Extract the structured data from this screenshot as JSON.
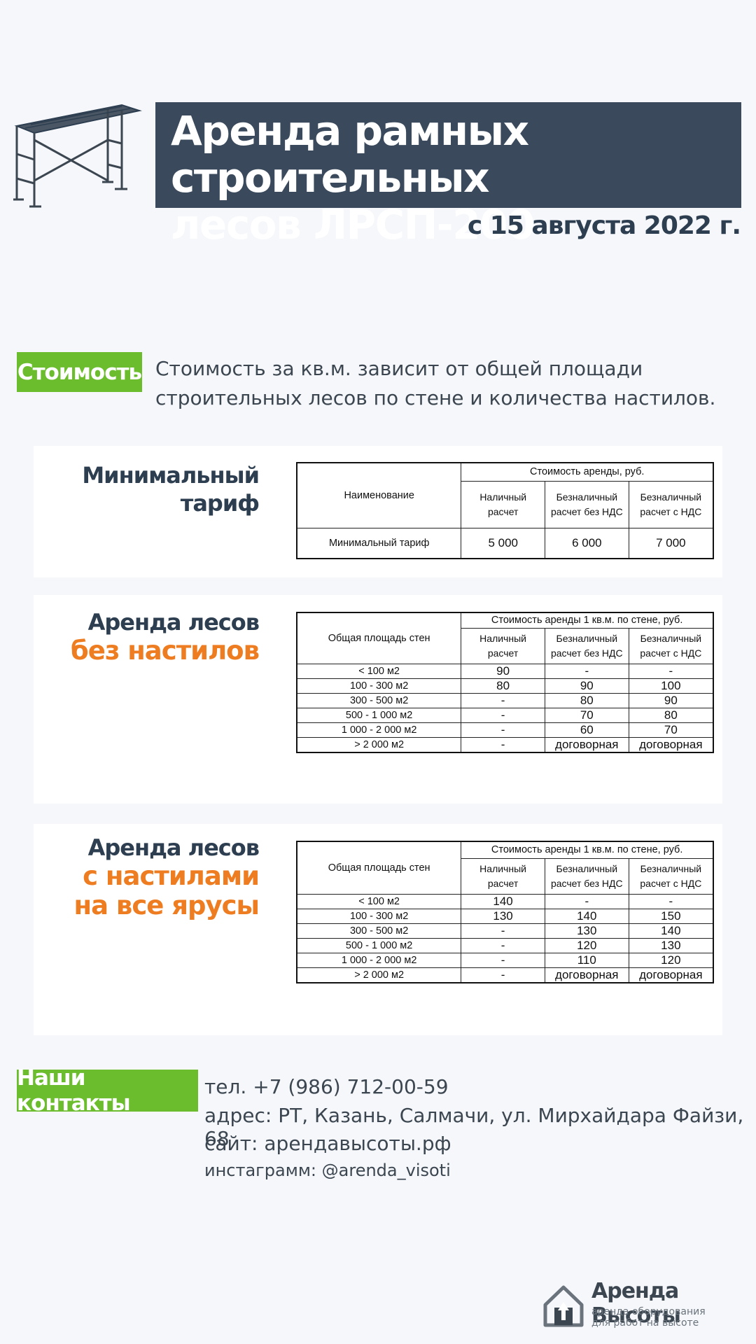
{
  "header": {
    "title_line1": "Аренда рамных строительных",
    "title_line2": "лесов ЛРСП-200",
    "date": "с 15 августа 2022 г."
  },
  "cost": {
    "tag": "Стоимость",
    "description_line1": "Стоимость за кв.м. зависит от общей площади",
    "description_line2": "строительных лесов по стене и количества настилов."
  },
  "headers": {
    "cash": [
      "Наличный",
      "расчет"
    ],
    "noncash_no_vat": [
      "Безналичный",
      "расчет без НДС"
    ],
    "noncash_vat": [
      "Безналичный",
      "расчет с НДС"
    ]
  },
  "min_tariff": {
    "heading_line1": "Минимальный",
    "heading_line2": "тариф",
    "col_name": "Наименование",
    "group_header": "Стоимость аренды, руб.",
    "row": [
      "Минимальный тариф",
      "5 000",
      "6 000",
      "7 000"
    ]
  },
  "no_decks": {
    "heading_line1": "Аренда лесов",
    "heading_line2": "без настилов",
    "col_name": "Общая площадь стен",
    "group_header": "Стоимость аренды 1 кв.м. по стене, руб.",
    "rows": [
      [
        "< 100 м2",
        "90",
        "-",
        "-"
      ],
      [
        "100 - 300 м2",
        "80",
        "90",
        "100"
      ],
      [
        "300 - 500 м2",
        "-",
        "80",
        "90"
      ],
      [
        "500 - 1 000 м2",
        "-",
        "70",
        "80"
      ],
      [
        "1 000 - 2 000 м2",
        "-",
        "60",
        "70"
      ],
      [
        "> 2 000 м2",
        "-",
        "договорная",
        "договорная"
      ]
    ]
  },
  "with_decks": {
    "heading_line1": "Аренда лесов",
    "heading_line2": "с настилами",
    "heading_line3": "на все ярусы",
    "col_name": "Общая площадь стен",
    "group_header": "Стоимость аренды 1 кв.м. по стене, руб.",
    "rows": [
      [
        "< 100 м2",
        "140",
        "-",
        "-"
      ],
      [
        "100 - 300 м2",
        "130",
        "140",
        "150"
      ],
      [
        "300 - 500 м2",
        "-",
        "130",
        "140"
      ],
      [
        "500 - 1 000 м2",
        "-",
        "120",
        "130"
      ],
      [
        "1 000 - 2 000 м2",
        "-",
        "110",
        "120"
      ],
      [
        "> 2 000 м2",
        "-",
        "договорная",
        "договорная"
      ]
    ]
  },
  "contacts": {
    "tag": "Наши контакты",
    "phone": "тел. +7 (986) 712-00-59",
    "address": "адрес: РТ, Казань, Салмачи, ул. Мирхайдара Файзи, 68",
    "site": "сайт: арендавысоты.рф",
    "instagram": "инстаграмм: @arenda_visoti"
  },
  "logo": {
    "name": "Аренда Высоты",
    "sub_line1": "аренда оборудования",
    "sub_line2": "для работ на высоте"
  },
  "colors": {
    "navy": "#3a4a5c",
    "green": "#6bbd2d",
    "orange": "#ee7d22",
    "background": "#f5f7fa"
  }
}
